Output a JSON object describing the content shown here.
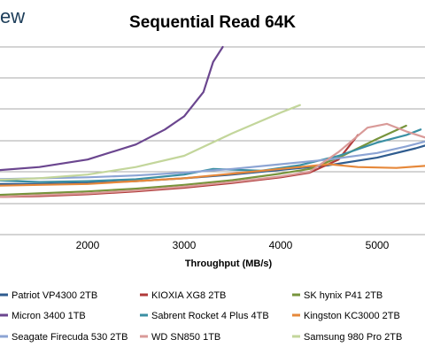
{
  "watermark": "ew",
  "chart_data": {
    "type": "line",
    "title": "Sequential Read 64K",
    "xlabel": "Throughput (MB/s)",
    "ylabel": "",
    "xlim": [
      1000,
      5600
    ],
    "ylim": [
      0,
      10
    ],
    "x_ticks": [
      "2000",
      "3000",
      "4000",
      "5000"
    ],
    "grid": "horizontal",
    "legend_position": "bottom",
    "series": [
      {
        "name": "Patriot VP4300 2TB",
        "color": "#2f5c8f",
        "x": [
          1000,
          1500,
          2000,
          2500,
          3000,
          3500,
          4000,
          4500,
          5000,
          5400,
          5600
        ],
        "y": [
          2.7,
          2.7,
          2.75,
          2.85,
          3.0,
          3.2,
          3.45,
          3.7,
          4.1,
          4.6,
          4.9
        ]
      },
      {
        "name": "KIOXIA XG8 2TB",
        "color": "#b03a3a",
        "x": [
          1000,
          1500,
          2000,
          2500,
          3000,
          3500,
          4000,
          4300,
          4600,
          4800
        ],
        "y": [
          2.0,
          2.05,
          2.15,
          2.3,
          2.5,
          2.75,
          3.05,
          3.3,
          4.0,
          5.3
        ]
      },
      {
        "name": "SK hynix P41 2TB",
        "color": "#77943c",
        "x": [
          1000,
          1500,
          2000,
          2500,
          3000,
          3500,
          4000,
          4300,
          4600,
          5000,
          5300
        ],
        "y": [
          2.1,
          2.2,
          2.3,
          2.45,
          2.65,
          2.9,
          3.25,
          3.5,
          4.1,
          5.1,
          5.8
        ]
      },
      {
        "name": "Micron 3400 1TB",
        "color": "#6b468f",
        "x": [
          1000,
          1500,
          2000,
          2500,
          2800,
          3000,
          3200,
          3300,
          3400
        ],
        "y": [
          3.4,
          3.6,
          4.0,
          4.8,
          5.6,
          6.3,
          7.6,
          9.2,
          10.0
        ]
      },
      {
        "name": "Sabrent Rocket 4 Plus 4TB",
        "color": "#3a8fa3",
        "x": [
          1000,
          1500,
          2000,
          2500,
          3000,
          3300,
          3800,
          4200,
          4600,
          5000,
          5300,
          5450
        ],
        "y": [
          2.9,
          2.8,
          2.85,
          2.95,
          3.2,
          3.5,
          3.4,
          3.7,
          4.2,
          4.9,
          5.3,
          5.6
        ]
      },
      {
        "name": "Kingston KC3000 2TB",
        "color": "#e6883a",
        "x": [
          1000,
          1500,
          2000,
          2500,
          3000,
          3500,
          4000,
          4500,
          4800,
          5200,
          5600
        ],
        "y": [
          2.6,
          2.65,
          2.7,
          2.85,
          3.0,
          3.25,
          3.5,
          3.75,
          3.6,
          3.55,
          3.7
        ]
      },
      {
        "name": "Seagate Firecuda 530 2TB",
        "color": "#8ca4d4",
        "x": [
          1000,
          1500,
          2000,
          2500,
          3000,
          3500,
          4000,
          4500,
          5000,
          5300,
          5600
        ],
        "y": [
          2.95,
          3.0,
          3.05,
          3.15,
          3.3,
          3.5,
          3.75,
          4.0,
          4.35,
          4.7,
          5.1
        ]
      },
      {
        "name": "WD SN850 1TB",
        "color": "#d99a98",
        "x": [
          1000,
          1500,
          2000,
          2500,
          3000,
          3500,
          4000,
          4300,
          4600,
          4900,
          5100,
          5300,
          5600
        ],
        "y": [
          2.0,
          2.1,
          2.2,
          2.35,
          2.55,
          2.8,
          3.1,
          3.35,
          4.4,
          5.7,
          5.9,
          5.5,
          5.0
        ]
      },
      {
        "name": "Samsung 980 Pro 2TB",
        "color": "#c3d69b",
        "x": [
          1000,
          1500,
          2000,
          2500,
          3000,
          3500,
          4000,
          4200
        ],
        "y": [
          2.9,
          3.0,
          3.2,
          3.6,
          4.2,
          5.4,
          6.5,
          6.9
        ]
      }
    ]
  }
}
